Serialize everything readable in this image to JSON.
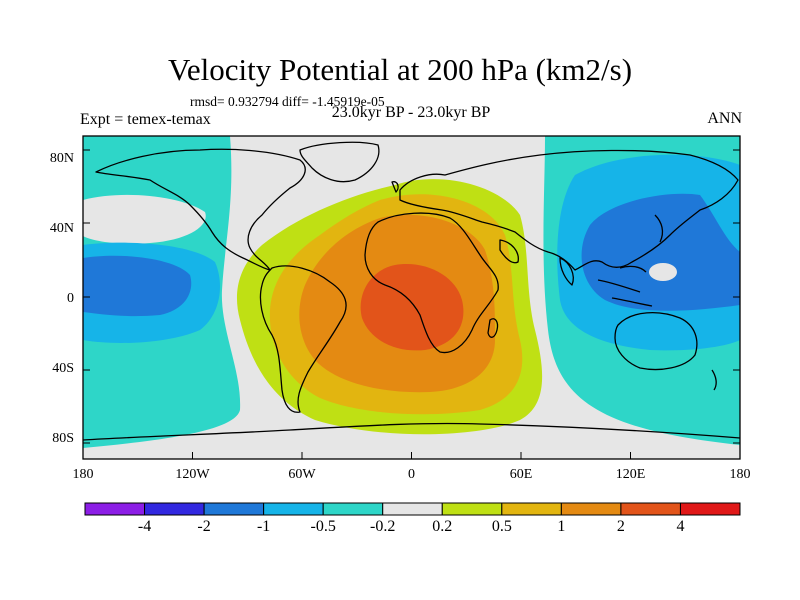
{
  "title": "Velocity Potential at 200 hPa (km2/s)",
  "stats": "rmsd= 0.932794 diff= -1.45919e-05",
  "experiment": "Expt = temex-temax",
  "period": "23.0kyr BP - 23.0kyr BP",
  "season": "ANN",
  "map": {
    "projection": "cylindrical equidistant",
    "lon_range": [
      -180,
      180
    ],
    "lat_range": [
      -90,
      90
    ],
    "lon_ticks": [
      {
        "value": -180,
        "label": "180"
      },
      {
        "value": -120,
        "label": "120W"
      },
      {
        "value": -60,
        "label": "60W"
      },
      {
        "value": 0,
        "label": "0"
      },
      {
        "value": 60,
        "label": "60E"
      },
      {
        "value": 120,
        "label": "120E"
      },
      {
        "value": 180,
        "label": "180"
      }
    ],
    "lat_ticks": [
      {
        "value": 80,
        "label": "80N"
      },
      {
        "value": 40,
        "label": "40N"
      },
      {
        "value": 0,
        "label": "0"
      },
      {
        "value": -40,
        "label": "40S"
      },
      {
        "value": -80,
        "label": "80S"
      }
    ]
  },
  "colorbar": {
    "labels": [
      "-4",
      "-2",
      "-1",
      "-0.5",
      "-0.2",
      "0.2",
      "0.5",
      "1",
      "2",
      "4"
    ],
    "colors": [
      "#8c1ee6",
      "#3228e0",
      "#1f78d8",
      "#16b4e8",
      "#2ed6c8",
      "#e6e6e6",
      "#bfe014",
      "#e2b510",
      "#e48a12",
      "#e2541a",
      "#e01818"
    ]
  }
}
